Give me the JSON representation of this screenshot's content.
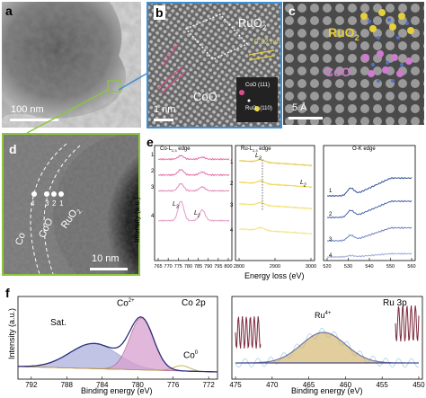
{
  "panel_a": {
    "label": "a",
    "scale": "100 nm"
  },
  "panel_b": {
    "label": "b",
    "phase_top": "RuO",
    "phase_top_sub": "2",
    "phase_bottom": "CoO",
    "scale": "1 nm",
    "d1": "0.32 nm",
    "d2": "0.24 nm",
    "fft1": "CoO (111)",
    "fft2": "RuO",
    "fft2_sub": "2",
    "fft2_tail": "(110)"
  },
  "panel_c": {
    "label": "c",
    "phase_top": "RuO",
    "phase_top_sub": "2",
    "phase_bottom": "CoO",
    "scale": "5 Å"
  },
  "panel_d": {
    "label": "d",
    "co": "Co",
    "coo": "CoO",
    "ruo": "RuO",
    "ruo_sub": "2",
    "points": [
      "4",
      "3",
      "2",
      "1"
    ],
    "scale": "10 nm"
  },
  "panel_e": {
    "label": "e",
    "ylabel": "Intensity (a.u.)",
    "xlabel": "Energy loss (eV)",
    "sub1": {
      "title": "Co-L",
      "title_sub": "2,3",
      "title_tail": " edge",
      "peak1": "L",
      "peak1_sub": "3",
      "peak2": "L",
      "peak2_sub": "2",
      "ticks": [
        "765",
        "770",
        "775",
        "780",
        "785",
        "790",
        "795",
        "800"
      ],
      "tick_vals": [
        765,
        770,
        775,
        780,
        785,
        790,
        795,
        800
      ],
      "traces": [
        "1",
        "2",
        "3",
        "4"
      ]
    },
    "sub2": {
      "title": "Ru-L",
      "title_sub": "2,3",
      "title_tail": " edge",
      "peak1": "L",
      "peak1_sub": "3",
      "peak2": "L",
      "peak2_sub": "2",
      "ticks": [
        "2800",
        "2900",
        "3000"
      ],
      "tick_vals": [
        2800,
        2900,
        3000
      ],
      "traces": [
        "1",
        "2",
        "3",
        "4"
      ]
    },
    "sub3": {
      "title": "O-K edge",
      "ticks": [
        "520",
        "530",
        "540",
        "550",
        "560"
      ],
      "tick_vals": [
        520,
        530,
        540,
        550,
        560
      ],
      "traces": [
        "1",
        "2",
        "3",
        "4"
      ]
    }
  },
  "panel_f": {
    "label": "f",
    "ylabel": "Intensity (a.u.)",
    "left": {
      "title": "Co  2p",
      "xlabel": "Binding energy (eV)",
      "sat": "Sat.",
      "co2": "Co",
      "co2_sup": "2+",
      "co0": "Co",
      "co0_sup": "0",
      "ticks": [
        "792",
        "788",
        "784",
        "780",
        "776",
        "772"
      ],
      "tick_vals": [
        792,
        788,
        784,
        780,
        776,
        772
      ],
      "xlim": [
        793.5,
        771
      ]
    },
    "right": {
      "title": "Ru 3p",
      "xlabel": "Binding energy (eV)",
      "ru4": "Ru",
      "ru4_sup": "4+",
      "ticks": [
        "475",
        "470",
        "465",
        "460",
        "455",
        "450"
      ],
      "tick_vals": [
        475,
        470,
        465,
        460,
        455,
        450
      ],
      "xlim": [
        475.5,
        449.5
      ]
    }
  },
  "colors": {
    "pink": "#d9508a",
    "yellow": "#e6cf3c",
    "blue": "#3b52a0",
    "fit_blue": "#8f94cf",
    "fit_pink": "#d7a0cf",
    "fit_gold": "#d3b36a",
    "raw_light": "#a9d4ea",
    "maroon": "#7a2a3c",
    "frame_green": "#8cc63f",
    "frame_blue": "#3d8fd6"
  }
}
